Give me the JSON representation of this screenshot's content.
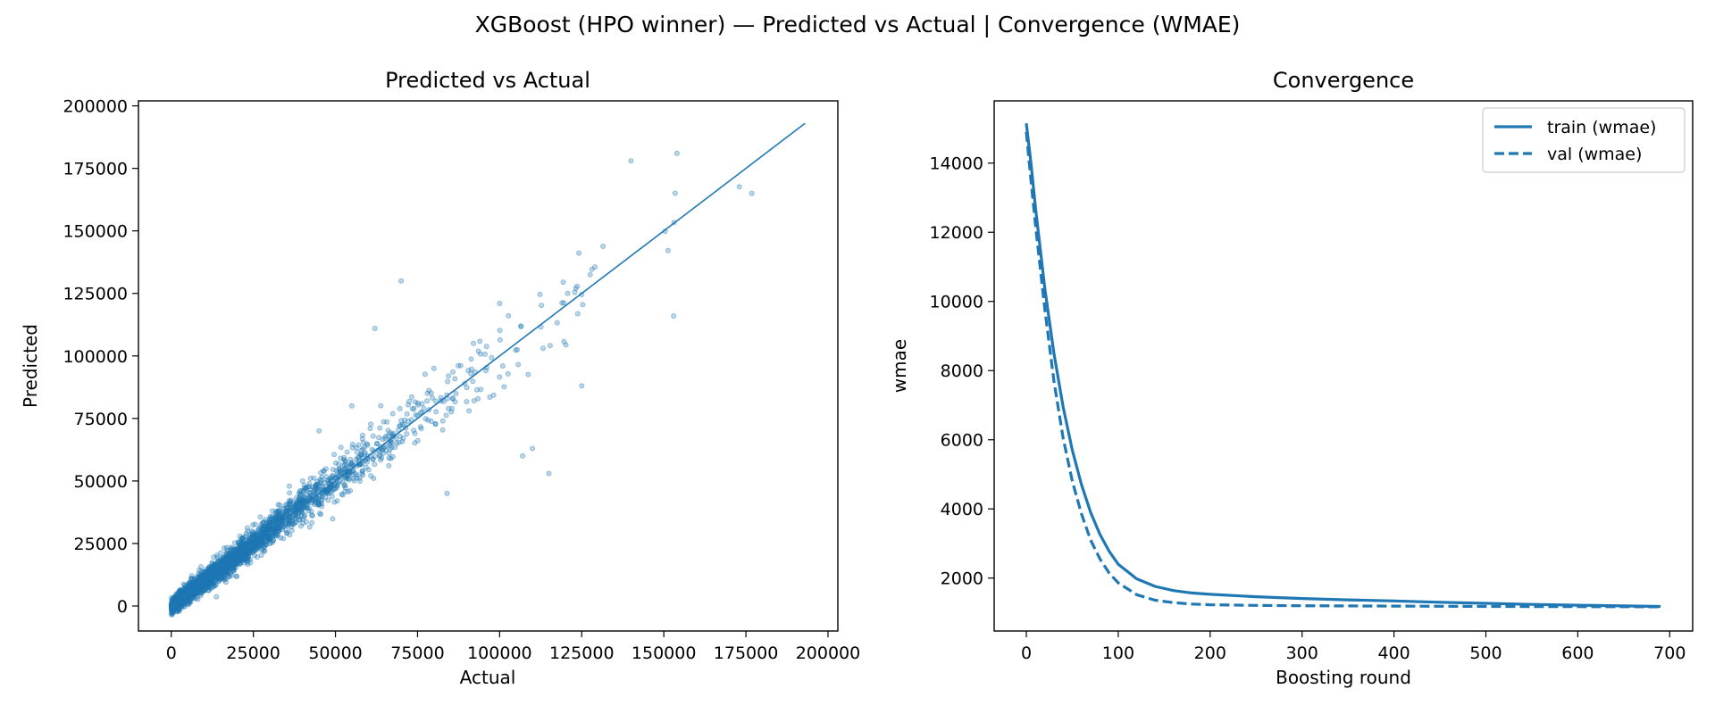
{
  "figure": {
    "title": "XGBoost (HPO winner) — Predicted vs Actual | Convergence (WMAE)"
  },
  "colors": {
    "series": "#1f77b4",
    "axes": "#000000",
    "legend_border": "#cccccc"
  },
  "chart_data": [
    {
      "type": "scatter",
      "title": "Predicted vs Actual",
      "xlabel": "Actual",
      "ylabel": "Predicted",
      "xlim": [
        -10000,
        203000
      ],
      "ylim": [
        -10000,
        202000
      ],
      "xticks": [
        0,
        25000,
        50000,
        75000,
        100000,
        125000,
        150000,
        175000,
        200000
      ],
      "yticks": [
        0,
        25000,
        50000,
        75000,
        100000,
        125000,
        150000,
        175000,
        200000
      ],
      "grid": false,
      "reference_line": {
        "x": [
          0,
          193000
        ],
        "y": [
          0,
          193000
        ]
      },
      "points_alpha": 0.3,
      "outliers": [
        {
          "x": 70000,
          "y": 130000
        },
        {
          "x": 62000,
          "y": 111000
        },
        {
          "x": 100000,
          "y": 121000
        },
        {
          "x": 115000,
          "y": 53000
        },
        {
          "x": 153000,
          "y": 116000
        },
        {
          "x": 125000,
          "y": 88000
        },
        {
          "x": 140000,
          "y": 178000
        },
        {
          "x": 154000,
          "y": 181000
        },
        {
          "x": 107000,
          "y": 60000
        },
        {
          "x": 84000,
          "y": 45000
        },
        {
          "x": 110000,
          "y": 63000
        },
        {
          "x": 92000,
          "y": 105000
        },
        {
          "x": 80000,
          "y": 95000
        },
        {
          "x": 55000,
          "y": 80000
        },
        {
          "x": 45000,
          "y": 70000
        }
      ]
    },
    {
      "type": "line",
      "title": "Convergence",
      "xlabel": "Boosting round",
      "ylabel": "wmae",
      "xlim": [
        -35,
        725
      ],
      "ylim": [
        470,
        15800
      ],
      "xticks": [
        0,
        100,
        200,
        300,
        400,
        500,
        600,
        700
      ],
      "yticks": [
        2000,
        4000,
        6000,
        8000,
        10000,
        12000,
        14000
      ],
      "grid": false,
      "legend": "top-right",
      "series": [
        {
          "name": "train (wmae)",
          "style": "solid",
          "x": [
            0,
            5,
            10,
            20,
            30,
            40,
            50,
            60,
            70,
            80,
            90,
            100,
            120,
            140,
            160,
            180,
            200,
            250,
            300,
            350,
            400,
            450,
            500,
            550,
            600,
            650,
            690
          ],
          "y": [
            15150,
            14000,
            12700,
            10400,
            8500,
            6950,
            5700,
            4700,
            3900,
            3270,
            2780,
            2400,
            1980,
            1760,
            1640,
            1570,
            1530,
            1460,
            1410,
            1370,
            1340,
            1300,
            1270,
            1240,
            1215,
            1195,
            1180
          ]
        },
        {
          "name": "val (wmae)",
          "style": "dashed",
          "x": [
            0,
            5,
            10,
            20,
            30,
            40,
            50,
            60,
            70,
            80,
            90,
            100,
            120,
            140,
            160,
            180,
            200,
            250,
            300,
            350,
            400,
            450,
            500,
            550,
            600,
            650,
            690
          ],
          "y": [
            14900,
            13500,
            12200,
            9800,
            7700,
            6050,
            4800,
            3850,
            3100,
            2560,
            2150,
            1860,
            1520,
            1360,
            1290,
            1250,
            1230,
            1210,
            1200,
            1195,
            1190,
            1185,
            1180,
            1178,
            1175,
            1172,
            1170
          ]
        }
      ]
    }
  ]
}
